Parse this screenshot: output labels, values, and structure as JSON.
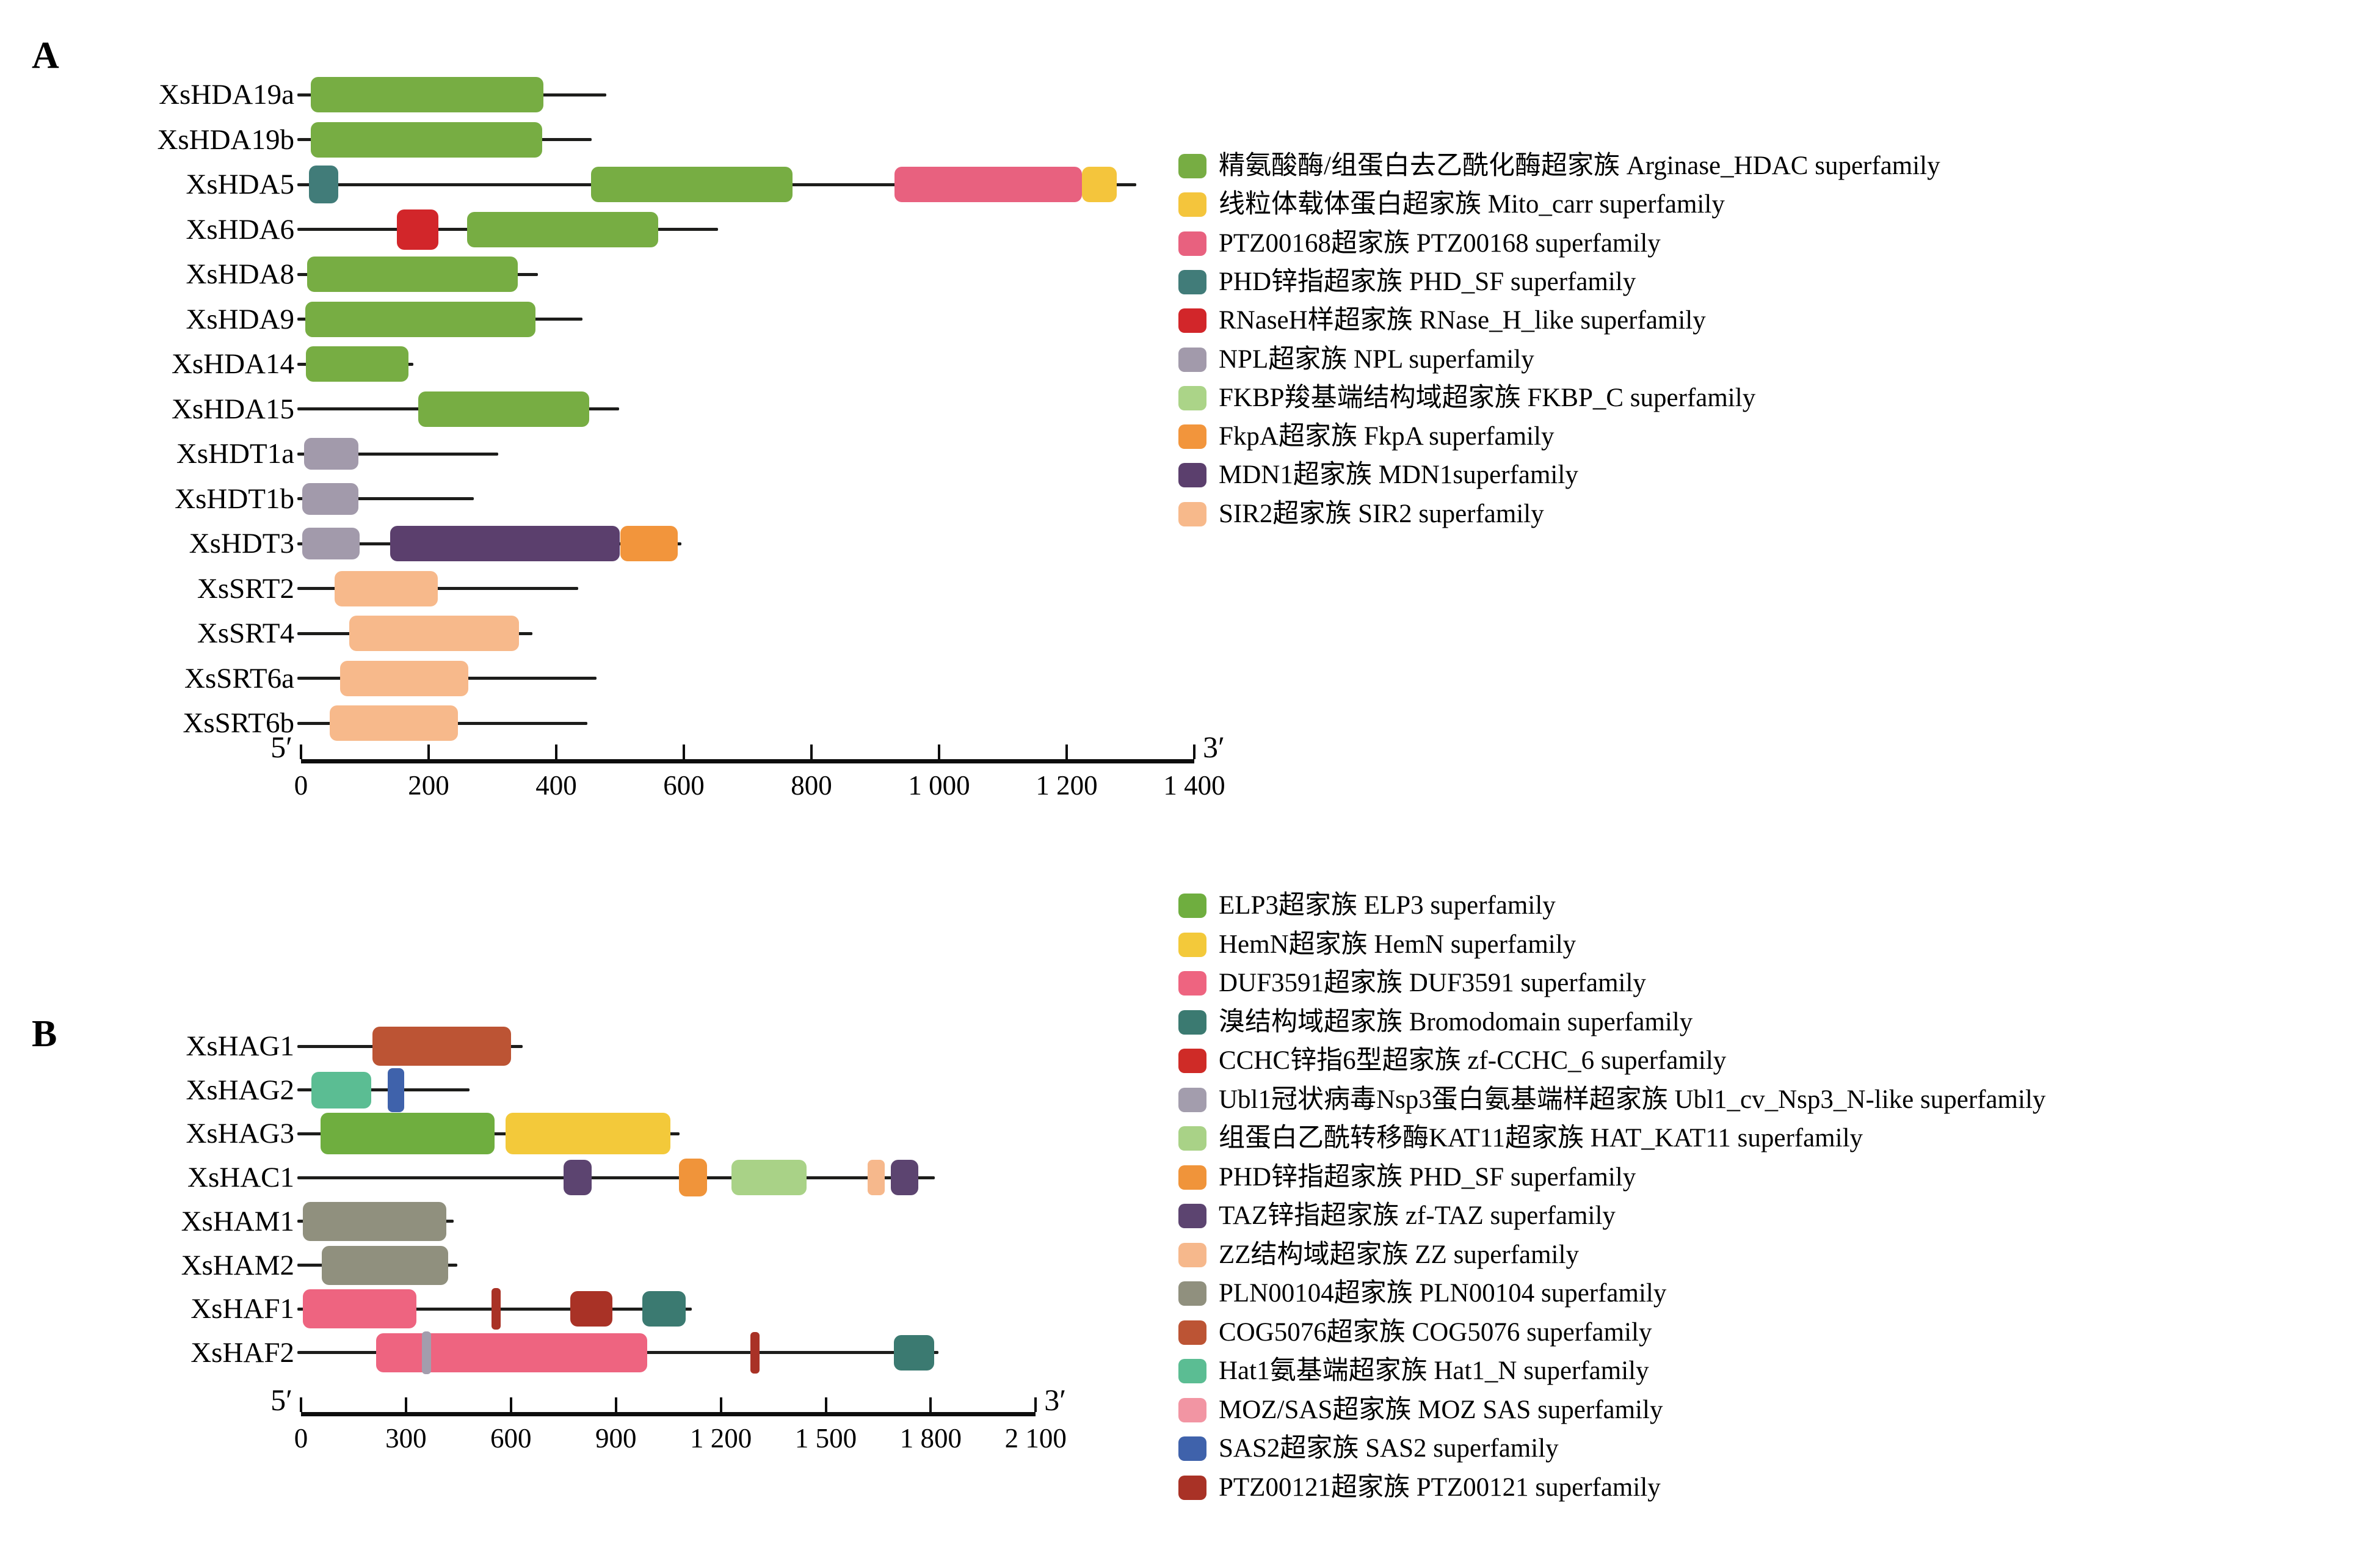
{
  "chart_data": {
    "type": "domain_architecture_diagram",
    "families": {
      "arginase_hdac": {
        "color": "#77ad43",
        "legend": "精氨酸酶/组蛋白去乙酰化酶超家族 Arginase_HDAC superfamily"
      },
      "mito_carr": {
        "color": "#f4c53c",
        "legend": "线粒体载体蛋白超家族 Mito_carr superfamily"
      },
      "ptz00168": {
        "color": "#e8617f",
        "legend": "PTZ00168超家族 PTZ00168 superfamily"
      },
      "phd_sf_a": {
        "color": "#417c79",
        "legend": "PHD锌指超家族 PHD_SF superfamily"
      },
      "rnase_h_like": {
        "color": "#d2262a",
        "legend": "RNaseH样超家族 RNase_H_like superfamily"
      },
      "npl": {
        "color": "#a29aab",
        "legend": "NPL超家族 NPL superfamily"
      },
      "fkbp_c": {
        "color": "#abd488",
        "legend": "FKBP羧基端结构域超家族 FKBP_C superfamily"
      },
      "fkpa": {
        "color": "#f2953c",
        "legend": "FkpA超家族 FkpA superfamily"
      },
      "mdn1": {
        "color": "#5b3f6d",
        "legend": "MDN1超家族 MDN1superfamily"
      },
      "sir2": {
        "color": "#f7b98b",
        "legend": "SIR2超家族 SIR2 superfamily"
      },
      "elp3": {
        "color": "#6fae3f",
        "legend": "ELP3超家族 ELP3 superfamily"
      },
      "hemn": {
        "color": "#f3c93a",
        "legend": "HemN超家族 HemN superfamily"
      },
      "duf3591": {
        "color": "#ee6480",
        "legend": "DUF3591超家族 DUF3591 superfamily"
      },
      "bromodomain": {
        "color": "#3b7a71",
        "legend": "溴结构域超家族 Bromodomain superfamily"
      },
      "zf_cchc_6": {
        "color": "#cf2b27",
        "legend": "CCHC锌指6型超家族 zf-CCHC_6 superfamily"
      },
      "ubl1": {
        "color": "#a39dad",
        "legend": "Ubl1冠状病毒Nsp3蛋白氨基端样超家族 Ubl1_cv_Nsp3_N-like superfamily"
      },
      "hat_kat11": {
        "color": "#a9d287",
        "legend": "组蛋白乙酰转移酶KAT11超家族 HAT_KAT11 superfamily"
      },
      "phd_sf_b": {
        "color": "#f0943a",
        "legend": "PHD锌指超家族 PHD_SF superfamily"
      },
      "zf_taz": {
        "color": "#5c4470",
        "legend": "TAZ锌指超家族 zf-TAZ superfamily"
      },
      "zz": {
        "color": "#f6b88c",
        "legend": "ZZ结构域超家族 ZZ superfamily"
      },
      "pln00104": {
        "color": "#90907e",
        "legend": "PLN00104超家族 PLN00104 superfamily"
      },
      "cog5076": {
        "color": "#bc5434",
        "legend": "COG5076超家族 COG5076 superfamily"
      },
      "hat1_n": {
        "color": "#5bbd93",
        "legend": "Hat1氨基端超家族 Hat1_N superfamily"
      },
      "moz_sas": {
        "color": "#f295a3",
        "legend": "MOZ/SAS超家族 MOZ SAS superfamily"
      },
      "sas2": {
        "color": "#3f62ab",
        "legend": "SAS2超家族 SAS2 superfamily"
      },
      "ptz00121": {
        "color": "#a93226",
        "legend": "PTZ00121超家族 PTZ00121 superfamily"
      }
    },
    "panels": [
      {
        "id": "A",
        "axis": {
          "max": 1400,
          "tick_step": 200,
          "five_prime": "5′",
          "three_prime": "3′",
          "tick_labels": [
            "0",
            "200",
            "400",
            "600",
            "800",
            "1 000",
            "1 200",
            "1 400"
          ]
        },
        "legend": [
          "arginase_hdac",
          "mito_carr",
          "ptz00168",
          "phd_sf_a",
          "rnase_h_like",
          "npl",
          "fkbp_c",
          "fkpa",
          "mdn1",
          "sir2"
        ],
        "genes": [
          {
            "name": "XsHDA19a",
            "length": 475,
            "domains": [
              {
                "family": "arginase_hdac",
                "start": 15,
                "end": 380
              }
            ]
          },
          {
            "name": "XsHDA19b",
            "length": 452,
            "domains": [
              {
                "family": "arginase_hdac",
                "start": 15,
                "end": 378
              }
            ]
          },
          {
            "name": "XsHDA5",
            "length": 1305,
            "domains": [
              {
                "family": "phd_sf_a",
                "start": 12,
                "end": 58,
                "h": 62
              },
              {
                "family": "arginase_hdac",
                "start": 455,
                "end": 770
              },
              {
                "family": "ptz00168",
                "start": 930,
                "end": 1224
              },
              {
                "family": "mito_carr",
                "start": 1224,
                "end": 1278
              }
            ]
          },
          {
            "name": "XsHDA6",
            "length": 650,
            "domains": [
              {
                "family": "rnase_h_like",
                "start": 150,
                "end": 215,
                "h": 66
              },
              {
                "family": "arginase_hdac",
                "start": 260,
                "end": 560
              }
            ]
          },
          {
            "name": "XsHDA8",
            "length": 367,
            "domains": [
              {
                "family": "arginase_hdac",
                "start": 10,
                "end": 340
              }
            ]
          },
          {
            "name": "XsHDA9",
            "length": 437,
            "domains": [
              {
                "family": "arginase_hdac",
                "start": 7,
                "end": 367
              }
            ]
          },
          {
            "name": "XsHDA14",
            "length": 172,
            "domains": [
              {
                "family": "arginase_hdac",
                "start": 8,
                "end": 168
              }
            ]
          },
          {
            "name": "XsHDA15",
            "length": 495,
            "domains": [
              {
                "family": "arginase_hdac",
                "start": 184,
                "end": 452
              }
            ]
          },
          {
            "name": "XsHDT1a",
            "length": 305,
            "domains": [
              {
                "family": "npl",
                "start": 5,
                "end": 90,
                "h": 52
              }
            ]
          },
          {
            "name": "XsHDT1b",
            "length": 267,
            "domains": [
              {
                "family": "npl",
                "start": 2,
                "end": 90,
                "h": 52
              }
            ]
          },
          {
            "name": "XsHDT3",
            "length": 592,
            "domains": [
              {
                "family": "npl",
                "start": 2,
                "end": 92,
                "h": 52
              },
              {
                "family": "mdn1",
                "start": 140,
                "end": 500
              },
              {
                "family": "fkpa",
                "start": 500,
                "end": 590
              }
            ]
          },
          {
            "name": "XsSRT2",
            "length": 431,
            "domains": [
              {
                "family": "sir2",
                "start": 53,
                "end": 214
              }
            ]
          },
          {
            "name": "XsSRT4",
            "length": 359,
            "domains": [
              {
                "family": "sir2",
                "start": 76,
                "end": 342
              }
            ]
          },
          {
            "name": "XsSRT6a",
            "length": 459,
            "domains": [
              {
                "family": "sir2",
                "start": 61,
                "end": 262
              }
            ]
          },
          {
            "name": "XsSRT6b",
            "length": 445,
            "domains": [
              {
                "family": "sir2",
                "start": 45,
                "end": 246
              }
            ]
          }
        ]
      },
      {
        "id": "B",
        "axis": {
          "max": 2100,
          "tick_step": 300,
          "five_prime": "5′",
          "three_prime": "3′",
          "tick_labels": [
            "0",
            "300",
            "600",
            "900",
            "1 200",
            "1 500",
            "1 800",
            "2 100"
          ]
        },
        "legend": [
          "elp3",
          "hemn",
          "duf3591",
          "bromodomain",
          "zf_cchc_6",
          "ubl1",
          "hat_kat11",
          "phd_sf_b",
          "zf_taz",
          "zz",
          "pln00104",
          "cog5076",
          "hat1_n",
          "moz_sas",
          "sas2",
          "ptz00121"
        ],
        "genes": [
          {
            "name": "XsHAG1",
            "length": 627,
            "domains": [
              {
                "family": "cog5076",
                "start": 205,
                "end": 600,
                "h": 64
              }
            ]
          },
          {
            "name": "XsHAG2",
            "length": 475,
            "domains": [
              {
                "family": "hat1_n",
                "start": 30,
                "end": 200,
                "h": 60
              },
              {
                "family": "sas2",
                "start": 248,
                "end": 295,
                "h": 72,
                "r": 8
              }
            ]
          },
          {
            "name": "XsHAG3",
            "length": 1075,
            "domains": [
              {
                "family": "elp3",
                "start": 56,
                "end": 553,
                "h": 68
              },
              {
                "family": "hemn",
                "start": 585,
                "end": 1055,
                "h": 68
              }
            ]
          },
          {
            "name": "XsHAC1",
            "length": 1805,
            "domains": [
              {
                "family": "zf_taz",
                "start": 750,
                "end": 830
              },
              {
                "family": "phd_sf_b",
                "start": 1080,
                "end": 1160,
                "h": 62
              },
              {
                "family": "hat_kat11",
                "start": 1230,
                "end": 1445
              },
              {
                "family": "zz",
                "start": 1620,
                "end": 1668,
                "r": 8
              },
              {
                "family": "zf_taz",
                "start": 1685,
                "end": 1765
              }
            ]
          },
          {
            "name": "XsHAM1",
            "length": 430,
            "domains": [
              {
                "family": "pln00104",
                "start": 5,
                "end": 415,
                "h": 64
              }
            ]
          },
          {
            "name": "XsHAM2",
            "length": 440,
            "domains": [
              {
                "family": "pln00104",
                "start": 60,
                "end": 420,
                "h": 64
              }
            ]
          },
          {
            "name": "XsHAF1",
            "length": 1110,
            "domains": [
              {
                "family": "duf3591",
                "start": 5,
                "end": 330,
                "h": 64
              },
              {
                "family": "ptz00121",
                "start": 545,
                "end": 570,
                "h": 68,
                "r": 6
              },
              {
                "family": "ptz00121",
                "start": 770,
                "end": 890
              },
              {
                "family": "bromodomain",
                "start": 975,
                "end": 1100
              }
            ]
          },
          {
            "name": "XsHAF2",
            "length": 1815,
            "domains": [
              {
                "family": "duf3591",
                "start": 215,
                "end": 990,
                "h": 64
              },
              {
                "family": "ubl1",
                "start": 345,
                "end": 372,
                "h": 70,
                "r": 6
              },
              {
                "family": "ptz00121",
                "start": 1285,
                "end": 1310,
                "h": 68,
                "r": 6
              },
              {
                "family": "bromodomain",
                "start": 1695,
                "end": 1810
              }
            ]
          }
        ]
      }
    ]
  }
}
